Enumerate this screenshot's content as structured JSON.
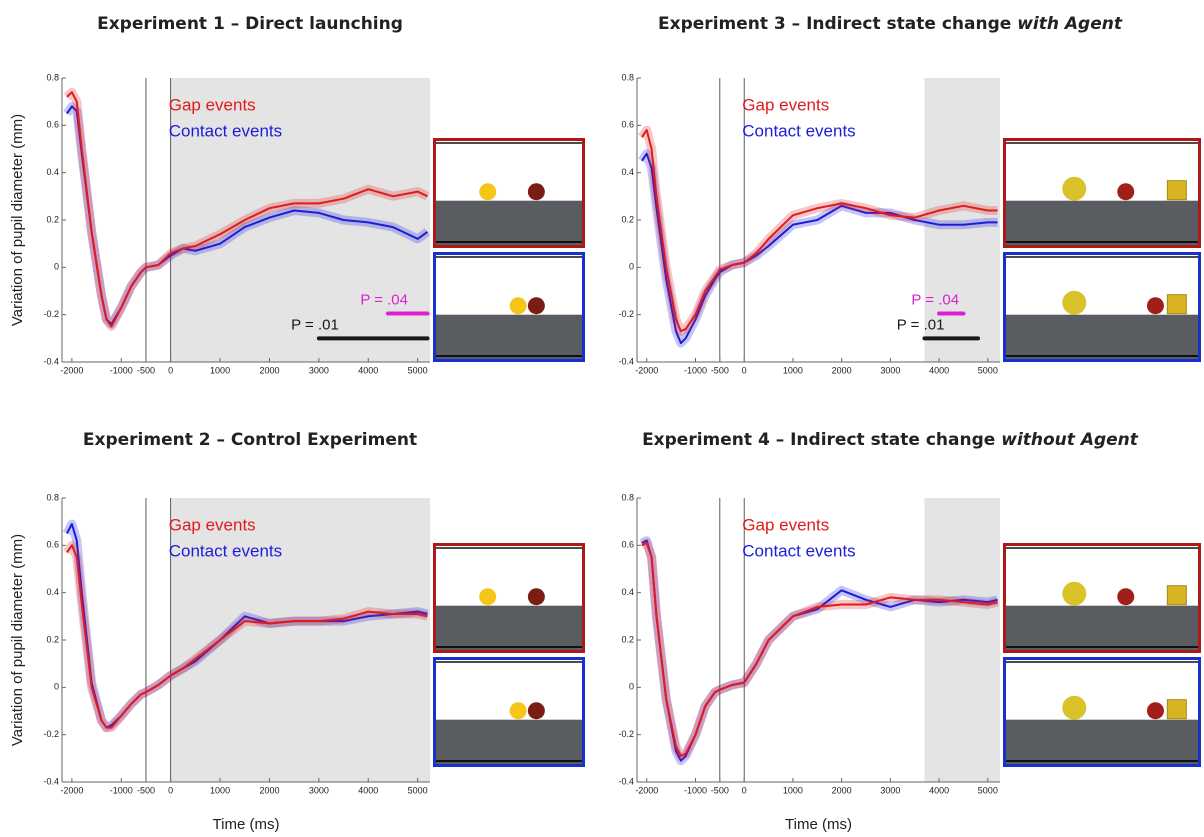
{
  "chart_data": [
    {
      "type": "line",
      "title": "Experiment 1 – Direct launching",
      "y_label": "Variation of pupil diameter (mm)",
      "x": [
        -2100,
        -2000,
        -1900,
        -1800,
        -1600,
        -1400,
        -1300,
        -1200,
        -1000,
        -800,
        -600,
        -500,
        -250,
        0,
        250,
        500,
        1000,
        1500,
        2000,
        2500,
        3000,
        3500,
        4000,
        4500,
        5000,
        5200
      ],
      "series": [
        {
          "name": "Gap events",
          "color": "#e01b1b",
          "values": [
            0.72,
            0.74,
            0.7,
            0.5,
            0.15,
            -0.12,
            -0.22,
            -0.25,
            -0.17,
            -0.08,
            -0.02,
            0,
            0.01,
            0.06,
            0.08,
            0.09,
            0.14,
            0.2,
            0.25,
            0.27,
            0.27,
            0.29,
            0.33,
            0.3,
            0.32,
            0.3
          ]
        },
        {
          "name": "Contact events",
          "color": "#1c1cdc",
          "values": [
            0.65,
            0.68,
            0.66,
            0.48,
            0.15,
            -0.12,
            -0.22,
            -0.24,
            -0.17,
            -0.08,
            -0.02,
            0,
            0.01,
            0.05,
            0.08,
            0.07,
            0.1,
            0.17,
            0.21,
            0.24,
            0.23,
            0.2,
            0.19,
            0.17,
            0.12,
            0.15
          ]
        }
      ],
      "xlim": [
        -2200,
        5250
      ],
      "ylim": [
        -0.4,
        0.8
      ],
      "xticks": [
        -2000,
        -1000,
        -500,
        0,
        1000,
        2000,
        3000,
        4000,
        5000
      ],
      "yticks": [
        -0.4,
        -0.2,
        0,
        0.2,
        0.4,
        0.6,
        0.8
      ],
      "vlines": [
        -500,
        0
      ],
      "shaded_region": [
        0,
        5250
      ],
      "significance": [
        {
          "label": "P = .04",
          "color": "#e020d0",
          "x": [
            4400,
            5200
          ],
          "y": -0.195
        },
        {
          "label": "P = .01",
          "color": "#1a1a1a",
          "x": [
            3000,
            5200
          ],
          "y": -0.3
        }
      ]
    },
    {
      "type": "line",
      "title": "Experiment 3 – Indirect state change",
      "title_emphasis": "with Agent",
      "x": [
        -2100,
        -2000,
        -1900,
        -1800,
        -1600,
        -1400,
        -1300,
        -1200,
        -1000,
        -800,
        -600,
        -500,
        -250,
        0,
        250,
        500,
        1000,
        1500,
        2000,
        2500,
        3000,
        3500,
        4000,
        4500,
        5000,
        5200
      ],
      "series": [
        {
          "name": "Gap events",
          "color": "#e01b1b",
          "values": [
            0.55,
            0.58,
            0.5,
            0.3,
            0.0,
            -0.22,
            -0.27,
            -0.26,
            -0.2,
            -0.1,
            -0.04,
            -0.01,
            0.01,
            0.02,
            0.06,
            0.12,
            0.22,
            0.25,
            0.27,
            0.25,
            0.22,
            0.21,
            0.24,
            0.26,
            0.24,
            0.24
          ]
        },
        {
          "name": "Contact events",
          "color": "#1c1cdc",
          "values": [
            0.45,
            0.48,
            0.42,
            0.25,
            -0.05,
            -0.27,
            -0.32,
            -0.3,
            -0.22,
            -0.12,
            -0.05,
            -0.02,
            0.01,
            0.02,
            0.05,
            0.09,
            0.18,
            0.2,
            0.26,
            0.23,
            0.23,
            0.2,
            0.18,
            0.18,
            0.19,
            0.19
          ]
        }
      ],
      "xlim": [
        -2200,
        5250
      ],
      "ylim": [
        -0.4,
        0.8
      ],
      "xticks": [
        -2000,
        -1000,
        -500,
        0,
        1000,
        2000,
        3000,
        4000,
        5000
      ],
      "yticks": [
        -0.4,
        -0.2,
        0,
        0.2,
        0.4,
        0.6,
        0.8
      ],
      "vlines": [
        -500,
        0
      ],
      "shaded_region": [
        3700,
        5250
      ],
      "significance": [
        {
          "label": "P = .04",
          "color": "#e020d0",
          "x": [
            4000,
            4500
          ],
          "y": -0.195
        },
        {
          "label": "P = .01",
          "color": "#1a1a1a",
          "x": [
            3700,
            4800
          ],
          "y": -0.3
        }
      ]
    },
    {
      "type": "line",
      "title": "Experiment 2 – Control Experiment",
      "y_label": "Variation of pupil diameter (mm)",
      "x_label": "Time (ms)",
      "x": [
        -2100,
        -2000,
        -1900,
        -1800,
        -1600,
        -1400,
        -1300,
        -1200,
        -1000,
        -800,
        -600,
        -500,
        -250,
        0,
        250,
        500,
        1000,
        1500,
        2000,
        2500,
        3000,
        3500,
        4000,
        4500,
        5000,
        5200
      ],
      "series": [
        {
          "name": "Gap events",
          "color": "#e01b1b",
          "values": [
            0.57,
            0.6,
            0.55,
            0.35,
            0.0,
            -0.14,
            -0.17,
            -0.17,
            -0.12,
            -0.07,
            -0.03,
            -0.02,
            0.01,
            0.05,
            0.08,
            0.12,
            0.2,
            0.28,
            0.27,
            0.28,
            0.28,
            0.29,
            0.32,
            0.31,
            0.31,
            0.3
          ]
        },
        {
          "name": "Contact events",
          "color": "#1c1cdc",
          "values": [
            0.65,
            0.69,
            0.62,
            0.4,
            0.02,
            -0.14,
            -0.17,
            -0.16,
            -0.12,
            -0.07,
            -0.03,
            -0.02,
            0.01,
            0.05,
            0.08,
            0.11,
            0.2,
            0.3,
            0.27,
            0.28,
            0.28,
            0.28,
            0.3,
            0.31,
            0.32,
            0.31
          ]
        }
      ],
      "xlim": [
        -2200,
        5250
      ],
      "ylim": [
        -0.4,
        0.8
      ],
      "xticks": [
        -2000,
        -1000,
        -500,
        0,
        1000,
        2000,
        3000,
        4000,
        5000
      ],
      "yticks": [
        -0.4,
        -0.2,
        0,
        0.2,
        0.4,
        0.6,
        0.8
      ],
      "vlines": [
        -500,
        0
      ],
      "shaded_region": [
        0,
        5250
      ]
    },
    {
      "type": "line",
      "title": "Experiment 4 – Indirect state change",
      "title_emphasis": "without Agent",
      "x_label": "Time (ms)",
      "x": [
        -2100,
        -2000,
        -1900,
        -1800,
        -1600,
        -1400,
        -1300,
        -1200,
        -1000,
        -800,
        -600,
        -500,
        -250,
        0,
        250,
        500,
        1000,
        1500,
        2000,
        2500,
        3000,
        3500,
        4000,
        4500,
        5000,
        5200
      ],
      "series": [
        {
          "name": "Gap events",
          "color": "#e01b1b",
          "values": [
            0.6,
            0.61,
            0.55,
            0.3,
            -0.05,
            -0.25,
            -0.29,
            -0.28,
            -0.2,
            -0.08,
            -0.02,
            -0.01,
            0.01,
            0.02,
            0.1,
            0.2,
            0.3,
            0.34,
            0.35,
            0.35,
            0.38,
            0.37,
            0.37,
            0.36,
            0.35,
            0.36
          ]
        },
        {
          "name": "Contact events",
          "color": "#1c1cdc",
          "values": [
            0.61,
            0.62,
            0.55,
            0.3,
            -0.05,
            -0.27,
            -0.31,
            -0.29,
            -0.2,
            -0.08,
            -0.02,
            -0.01,
            0.01,
            0.02,
            0.1,
            0.2,
            0.3,
            0.33,
            0.41,
            0.37,
            0.34,
            0.37,
            0.36,
            0.37,
            0.36,
            0.37
          ]
        }
      ],
      "xlim": [
        -2200,
        5250
      ],
      "ylim": [
        -0.4,
        0.8
      ],
      "xticks": [
        -2000,
        -1000,
        -500,
        0,
        1000,
        2000,
        3000,
        4000,
        5000
      ],
      "yticks": [
        -0.4,
        -0.2,
        0,
        0.2,
        0.4,
        0.6,
        0.8
      ],
      "vlines": [
        -500,
        0
      ],
      "shaded_region": [
        3700,
        5250
      ]
    }
  ]
}
